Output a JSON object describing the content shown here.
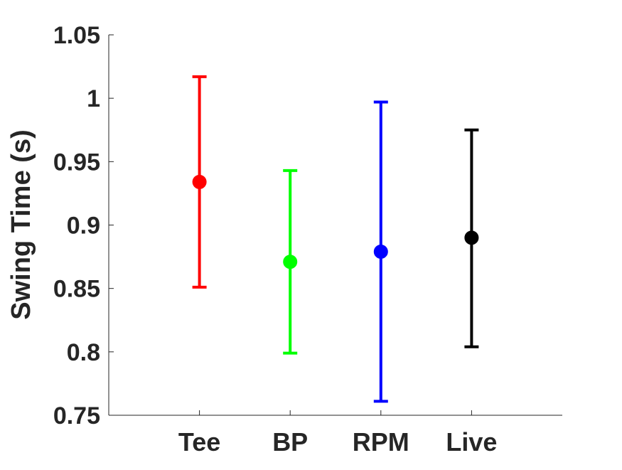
{
  "chart_data": {
    "type": "errorbar",
    "title": "",
    "xlabel": "",
    "ylabel": "Swing Time (s)",
    "categories": [
      "Tee",
      "BP",
      "RPM",
      "Live"
    ],
    "means": [
      0.934,
      0.871,
      0.879,
      0.89
    ],
    "upper": [
      1.017,
      0.943,
      0.997,
      0.975
    ],
    "lower": [
      0.851,
      0.799,
      0.761,
      0.804
    ],
    "colors": [
      "#ff0000",
      "#00ff00",
      "#0000ff",
      "#000000"
    ],
    "ylim": [
      0.75,
      1.05
    ],
    "yticks": [
      0.75,
      0.8,
      0.85,
      0.9,
      0.95,
      1,
      1.05
    ],
    "ytick_labels": [
      "0.75",
      "0.8",
      "0.85",
      "0.9",
      "0.95",
      "1",
      "1.05"
    ],
    "xlim": [
      0,
      5
    ],
    "x_positions": [
      1,
      2,
      3,
      4
    ],
    "grid": false,
    "legend": "none"
  }
}
